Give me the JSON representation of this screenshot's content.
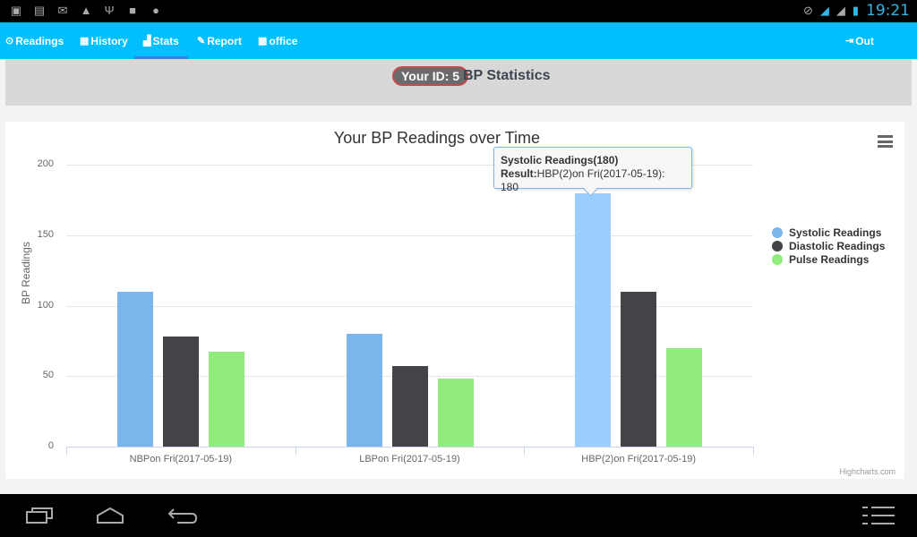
{
  "statusbar": {
    "left_icons": [
      "gallery-icon",
      "chat-icon",
      "gmail-icon",
      "warning-icon",
      "usb-icon",
      "lock-icon",
      "android-icon"
    ],
    "right_icons": [
      "mute-icon",
      "signal-h-icon",
      "signal-icon",
      "battery-charging-icon"
    ],
    "time": "19:21"
  },
  "nav": {
    "items": [
      {
        "label": "Readings",
        "icon": "dashboard-icon"
      },
      {
        "label": "History",
        "icon": "film-icon"
      },
      {
        "label": "Stats",
        "icon": "bar-chart-icon",
        "active": true
      },
      {
        "label": "Report",
        "icon": "pencil-icon"
      },
      {
        "label": "office",
        "icon": "gift-icon"
      }
    ],
    "logout_label": "Out"
  },
  "header": {
    "id_badge": "Your ID: 5",
    "title": "BP Statistics"
  },
  "chart_data": {
    "type": "bar",
    "title": "Your BP Readings over Time",
    "xlabel": "",
    "ylabel": "BP Readings",
    "ylim": [
      0,
      200
    ],
    "yticks": [
      "0",
      "50",
      "100",
      "150",
      "200"
    ],
    "grid": true,
    "legend_position": "right",
    "categories": [
      "NBPon Fri(2017-05-19)",
      "LBPon Fri(2017-05-19)",
      "HBP(2)on Fri(2017-05-19)"
    ],
    "series": [
      {
        "name": "Systolic Readings",
        "color": "#7cb5ec",
        "values": [
          110,
          80,
          180
        ]
      },
      {
        "name": "Diastolic Readings",
        "color": "#434348",
        "values": [
          78,
          57,
          110
        ]
      },
      {
        "name": "Pulse Readings",
        "color": "#90ed7d",
        "values": [
          67,
          48,
          70
        ]
      }
    ],
    "tooltip": {
      "title": "Systolic Readings(180)",
      "label": "Result:",
      "value": "HBP(2)on Fri(2017-05-19): 180"
    },
    "credits": "Highcharts.com"
  },
  "bottom_nav": [
    "recent-apps-icon",
    "home-icon",
    "back-icon",
    "menu-icon"
  ]
}
